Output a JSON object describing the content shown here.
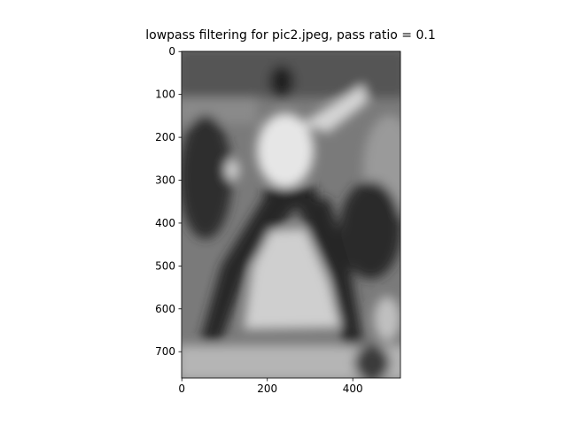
{
  "chart_data": {
    "type": "image",
    "title": "lowpass filtering for pic2.jpeg, pass ratio = 0.1",
    "colormap": "gray",
    "xlim": [
      -0.5,
      511.5
    ],
    "xticks": [
      0,
      200,
      400
    ],
    "ylim": [
      761.5,
      -0.5
    ],
    "yticks": [
      0,
      100,
      200,
      300,
      400,
      500,
      600,
      700
    ]
  }
}
